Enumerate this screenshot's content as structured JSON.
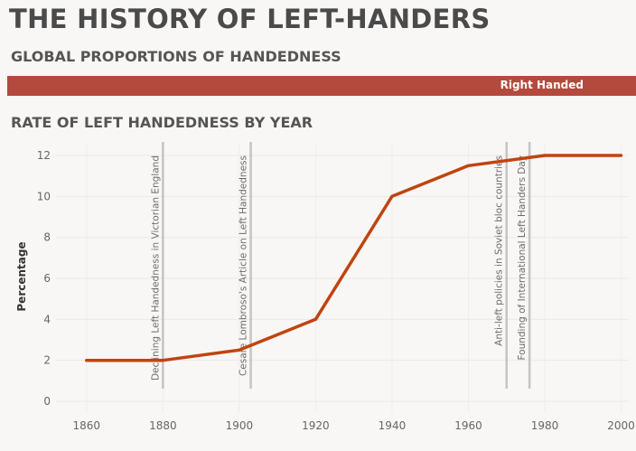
{
  "header": {
    "title": "THE HISTORY OF LEFT-HANDERS",
    "section1": "GLOBAL PROPORTIONS OF HANDEDNESS",
    "section2": "RATE OF LEFT HANDEDNESS BY YEAR"
  },
  "proportion_bar": {
    "label": "Right Handed",
    "color": "#b34a3d"
  },
  "chart_data": {
    "type": "line",
    "title": "RATE OF LEFT HANDEDNESS BY YEAR",
    "xlabel": "",
    "ylabel": "Percentage",
    "x": [
      1860,
      1880,
      1900,
      1920,
      1940,
      1960,
      1980,
      2000
    ],
    "series": [
      {
        "values": [
          2,
          2,
          2.5,
          4,
          10,
          11.5,
          12,
          12
        ],
        "color": "#c0440f"
      }
    ],
    "xlim": [
      1852,
      2002
    ],
    "ylim": [
      0,
      12.4
    ],
    "xticks": [
      "1860",
      "1880",
      "1900",
      "1920",
      "1940",
      "1960",
      "1980",
      "2000"
    ],
    "yticks": [
      "0",
      "2",
      "4",
      "6",
      "8",
      "10",
      "12"
    ],
    "grid": true,
    "annotations": [
      {
        "x": 1880,
        "text": "Declining Left Handedness in Victorian England"
      },
      {
        "x": 1903,
        "text": "Cesare Lombroso's Article on Left Handedness"
      },
      {
        "x": 1970,
        "text": "Anti-left policies in Soviet bloc countries"
      },
      {
        "x": 1976,
        "text": "Founding of International Left Handers Day"
      }
    ]
  }
}
